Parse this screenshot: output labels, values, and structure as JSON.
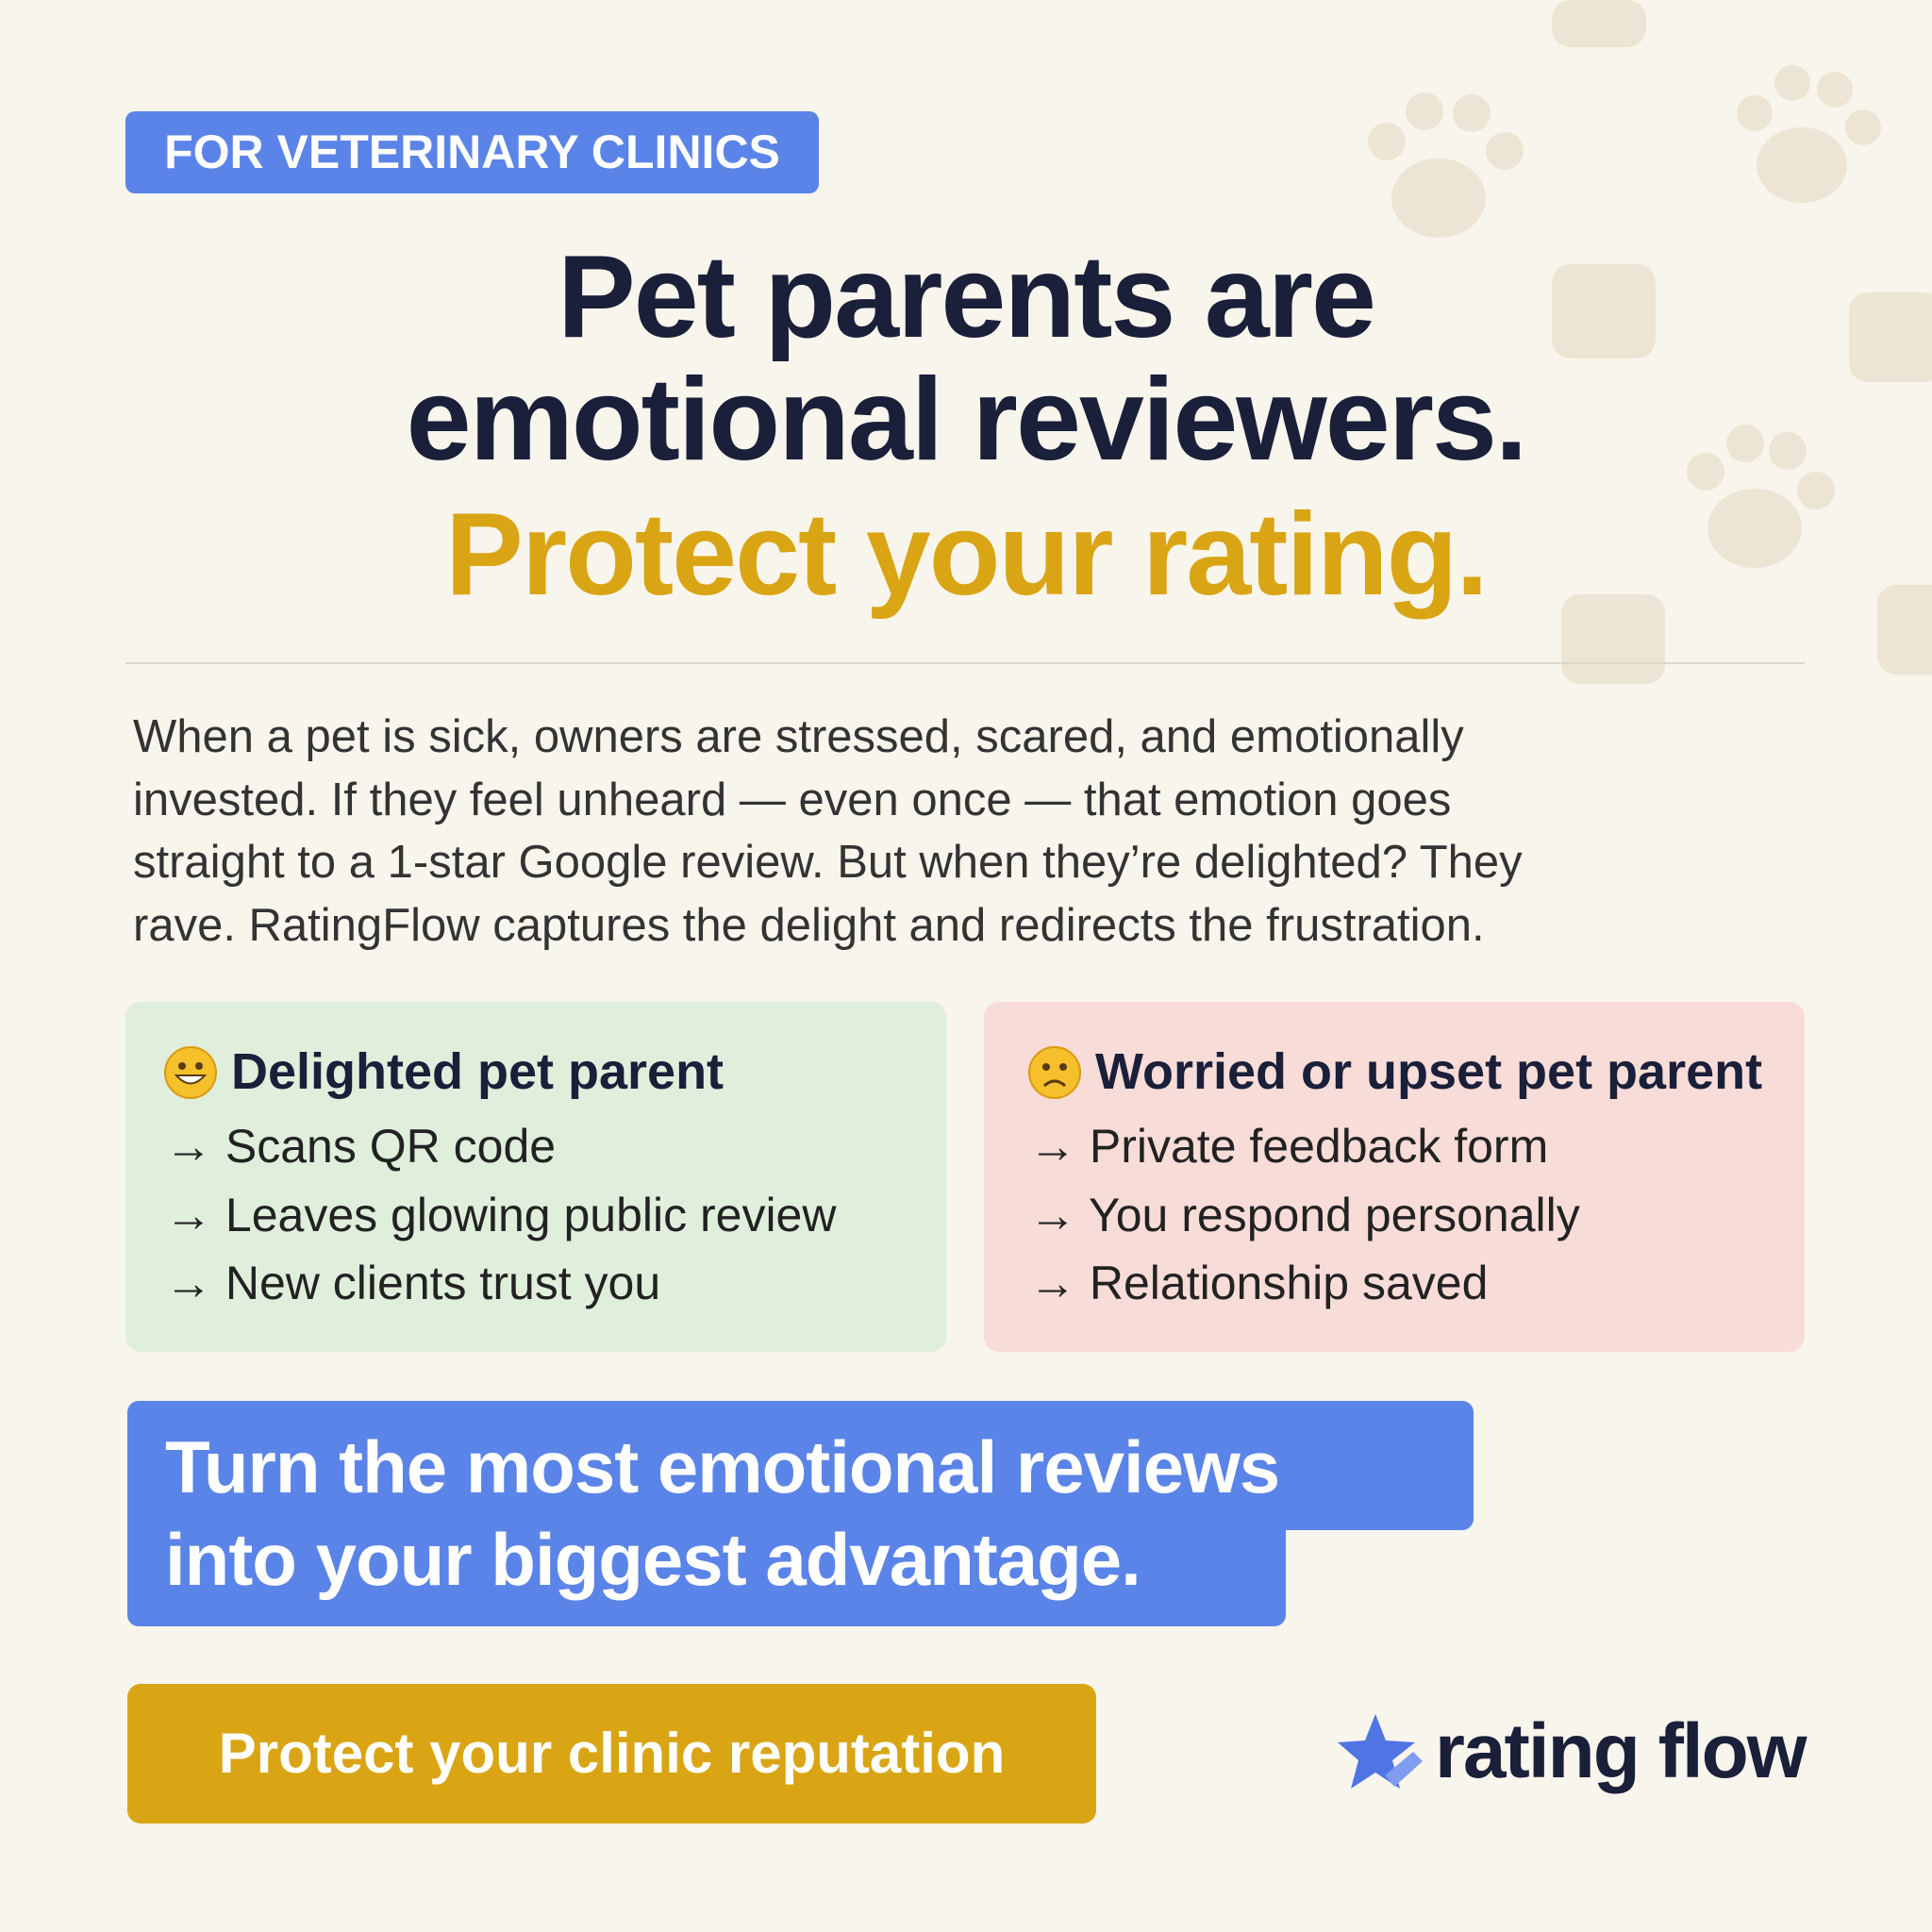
{
  "badge": "FOR VETERINARY CLINICS",
  "headline": {
    "lines": [
      "Pet parents are",
      "emotional reviewers."
    ],
    "accent": "Protect your rating."
  },
  "paragraph": {
    "lines": [
      "When a pet is sick, owners are stressed, scared, and emotionally",
      "invested. If they feel unheard — even once — that emotion goes",
      "straight to a 1-star Google review. But when they’re delighted? They",
      "rave. RatingFlow captures the delight and redirects the frustration."
    ]
  },
  "cards": [
    {
      "title": "Delighted pet parent",
      "items": [
        "→ Scans QR code",
        "→ Leaves glowing public review",
        "→ New clients trust you"
      ]
    },
    {
      "title": "Worried or upset pet parent",
      "items": [
        "→ Private feedback form",
        "→ You respond personally",
        "→ Relationship saved"
      ]
    }
  ],
  "cta": {
    "lines": [
      "Turn the most emotional reviews",
      "into your biggest advantage."
    ]
  },
  "button": "Protect your clinic reputation",
  "logo": "rating flow"
}
